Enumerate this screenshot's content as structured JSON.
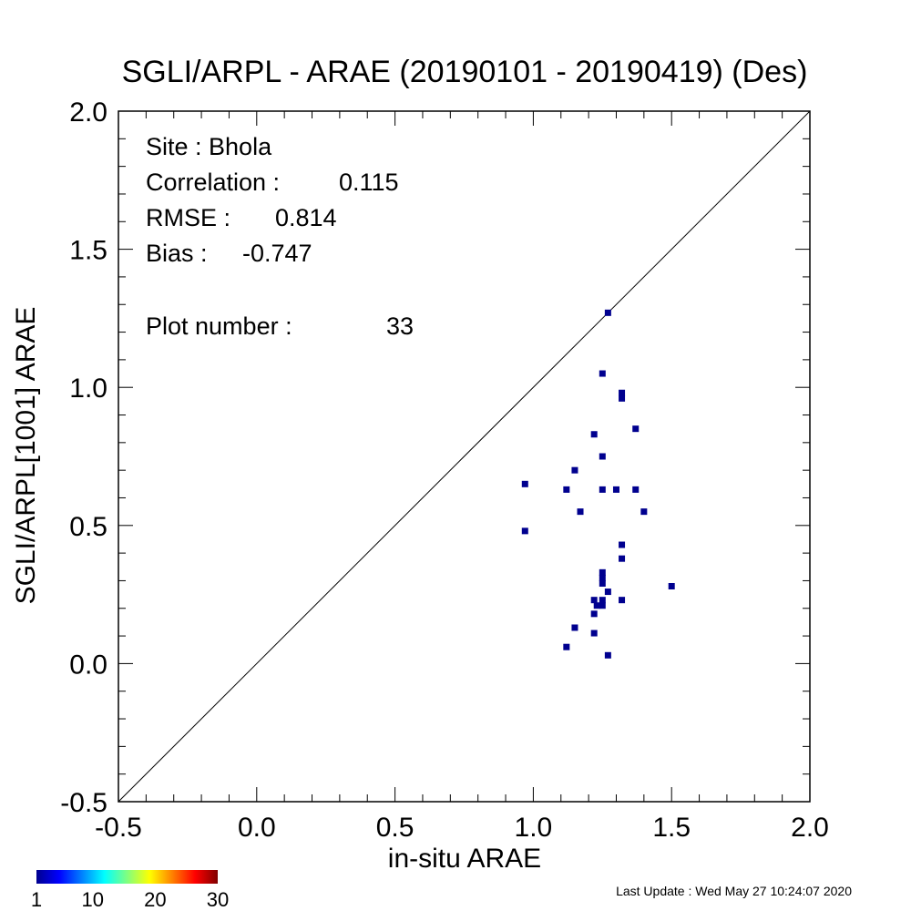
{
  "chart_data": {
    "type": "scatter",
    "title": "SGLI/ARPL - ARAE (20190101 - 20190419) (Des)",
    "xlabel": "in-situ ARAE",
    "ylabel": "SGLI/ARPL[1001]    ARAE",
    "xlim": [
      -0.5,
      2.0
    ],
    "ylim": [
      -0.5,
      2.0
    ],
    "xticks": [
      "-0.5",
      "0.0",
      "0.5",
      "1.0",
      "1.5",
      "2.0"
    ],
    "yticks": [
      "-0.5",
      "0.0",
      "0.5",
      "1.0",
      "1.5",
      "2.0"
    ],
    "one_to_one_line": true,
    "grid": false,
    "stats": {
      "site": "Site : Bhola",
      "correlation_label": "Correlation :",
      "correlation_value": "0.115",
      "rmse_label": "RMSE :",
      "rmse_value": "0.814",
      "bias_label": "Bias :",
      "bias_value": "-0.747",
      "plot_number_label": "Plot number :",
      "plot_number_value": "33"
    },
    "colorbar": {
      "colors": [
        "#00008f",
        "#0000ff",
        "#0080ff",
        "#00ffff",
        "#80ff80",
        "#ffff00",
        "#ff8000",
        "#ff0000",
        "#800000"
      ],
      "tick_labels": [
        "1",
        "10",
        "20",
        "30"
      ],
      "tick_values": [
        1,
        10,
        20,
        30
      ],
      "range": [
        1,
        30
      ]
    },
    "point_color": "#00008f",
    "points": [
      {
        "x": 1.27,
        "y": 1.27
      },
      {
        "x": 1.25,
        "y": 1.05
      },
      {
        "x": 1.32,
        "y": 0.98
      },
      {
        "x": 1.32,
        "y": 0.96
      },
      {
        "x": 1.37,
        "y": 0.85
      },
      {
        "x": 1.22,
        "y": 0.83
      },
      {
        "x": 1.25,
        "y": 0.75
      },
      {
        "x": 1.15,
        "y": 0.7
      },
      {
        "x": 0.97,
        "y": 0.65
      },
      {
        "x": 1.12,
        "y": 0.63
      },
      {
        "x": 1.25,
        "y": 0.63
      },
      {
        "x": 1.3,
        "y": 0.63
      },
      {
        "x": 1.37,
        "y": 0.63
      },
      {
        "x": 1.17,
        "y": 0.55
      },
      {
        "x": 1.4,
        "y": 0.55
      },
      {
        "x": 0.97,
        "y": 0.48
      },
      {
        "x": 1.32,
        "y": 0.43
      },
      {
        "x": 1.32,
        "y": 0.38
      },
      {
        "x": 1.25,
        "y": 0.33
      },
      {
        "x": 1.25,
        "y": 0.31
      },
      {
        "x": 1.25,
        "y": 0.29
      },
      {
        "x": 1.5,
        "y": 0.28
      },
      {
        "x": 1.27,
        "y": 0.26
      },
      {
        "x": 1.22,
        "y": 0.23
      },
      {
        "x": 1.32,
        "y": 0.23
      },
      {
        "x": 1.25,
        "y": 0.23
      },
      {
        "x": 1.25,
        "y": 0.21
      },
      {
        "x": 1.23,
        "y": 0.21
      },
      {
        "x": 1.22,
        "y": 0.18
      },
      {
        "x": 1.15,
        "y": 0.13
      },
      {
        "x": 1.22,
        "y": 0.11
      },
      {
        "x": 1.12,
        "y": 0.06
      },
      {
        "x": 1.27,
        "y": 0.03
      }
    ]
  },
  "footer": {
    "last_update": "Last Update : Wed May 27 10:24:07 2020"
  }
}
